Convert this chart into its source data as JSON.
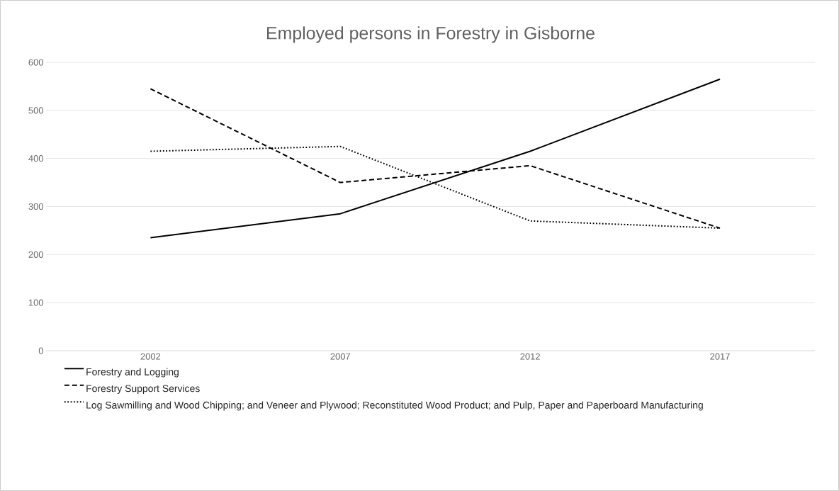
{
  "chart_data": {
    "type": "line",
    "title": "Employed persons in Forestry in Gisborne",
    "categories": [
      "2002",
      "2007",
      "2012",
      "2017"
    ],
    "series": [
      {
        "name": "Forestry and Logging",
        "color": "#000000",
        "line_style": "solid",
        "values": [
          235,
          285,
          415,
          565
        ]
      },
      {
        "name": "Forestry Support Services",
        "color": "#000000",
        "line_style": "dashed",
        "values": [
          545,
          350,
          385,
          255
        ]
      },
      {
        "name": "Log Sawmilling and Wood Chipping; and Veneer and Plywood; Reconstituted Wood Product; and Pulp, Paper and Paperboard Manufacturing",
        "color": "#000000",
        "line_style": "dotted",
        "values": [
          415,
          425,
          270,
          255
        ]
      }
    ],
    "ylim": [
      0,
      600
    ],
    "yticks": [
      0,
      100,
      200,
      300,
      400,
      500,
      600
    ],
    "grid": "y",
    "legend": "bottom"
  }
}
